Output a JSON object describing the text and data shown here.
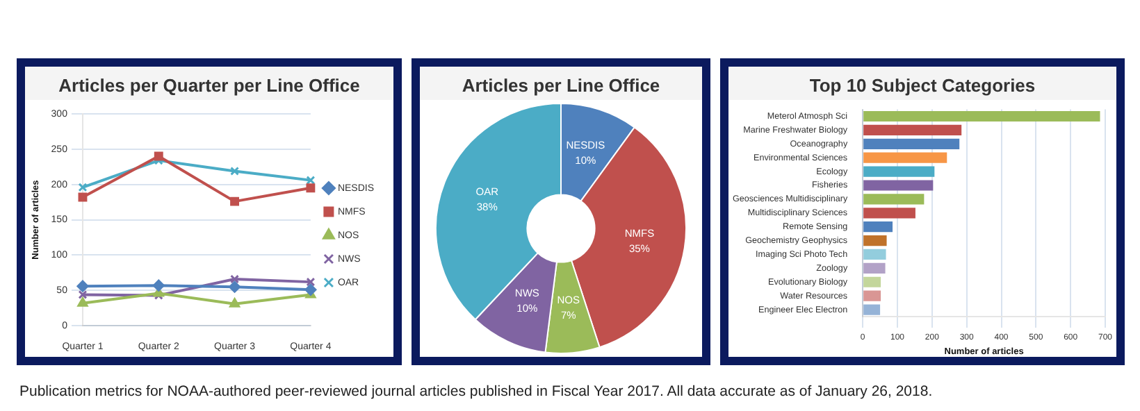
{
  "chart_data": [
    {
      "type": "line",
      "title": "Articles per Quarter per Line Office",
      "ylabel": "Number of articles",
      "categories": [
        "Quarter 1",
        "Quarter 2",
        "Quarter 3",
        "Quarter 4"
      ],
      "series": [
        {
          "name": "NESDIS",
          "color": "#4f81bd",
          "marker": "diamond",
          "values": [
            56,
            57,
            55,
            51
          ]
        },
        {
          "name": "NMFS",
          "color": "#c0504d",
          "marker": "square",
          "values": [
            182,
            240,
            176,
            195
          ]
        },
        {
          "name": "NOS",
          "color": "#9bbb59",
          "marker": "triangle",
          "values": [
            32,
            46,
            31,
            44
          ]
        },
        {
          "name": "NWS",
          "color": "#8064a2",
          "marker": "cross",
          "values": [
            44,
            43,
            66,
            62
          ]
        },
        {
          "name": "OAR",
          "color": "#4bacc6",
          "marker": "cross",
          "values": [
            196,
            234,
            219,
            206
          ]
        }
      ],
      "ylim": [
        0,
        300
      ],
      "yticks": [
        0,
        50,
        100,
        150,
        200,
        250,
        300
      ],
      "grid": "y",
      "legend": "right",
      "annotations": [
        "Publication metrics for NOAA-authored peer-reviewed journal articles published in Fiscal Year 2017. All data accurate as of January 26, 2018."
      ]
    },
    {
      "type": "donut",
      "title": "Articles per Line Office",
      "categories": [
        "NESDIS",
        "NMFS",
        "NOS",
        "NWS",
        "OAR"
      ],
      "values": [
        10,
        35,
        7,
        10,
        38
      ],
      "value_labels": [
        "10%",
        "35%",
        "7%",
        "10%",
        "38%"
      ],
      "colors": [
        "#4f81bd",
        "#c0504d",
        "#9bbb59",
        "#8064a2",
        "#4bacc6"
      ]
    },
    {
      "type": "bar",
      "orientation": "horizontal",
      "title": "Top 10 Subject Categories",
      "xlabel": "Number of articles",
      "categories": [
        "Meterol Atmosph Sci",
        "Marine Freshwater Biology",
        "Oceanography",
        "Environmental Sciences",
        "Ecology",
        "Fisheries",
        "Geosciences Multidisciplinary",
        "Multidisciplinary Sciences",
        "Remote Sensing",
        "Geochemistry Geophysics",
        "Imaging Sci Photo Tech",
        "Zoology",
        "Evolutionary Biology",
        "Water Resources",
        "Engineer Elec Electron"
      ],
      "values": [
        685,
        285,
        279,
        243,
        207,
        203,
        177,
        152,
        86,
        69,
        67,
        65,
        52,
        52,
        50
      ],
      "colors": [
        "#9bbb59",
        "#c0504d",
        "#4f81bd",
        "#f79646",
        "#4bacc6",
        "#8064a2",
        "#9bbb59",
        "#c0504d",
        "#4f81bd",
        "#c0722a",
        "#93cddd",
        "#b2a2c7",
        "#c3d69b",
        "#d99694",
        "#95b3d7"
      ],
      "xlim": [
        0,
        700
      ],
      "xticks": [
        0,
        100,
        200,
        300,
        400,
        500,
        600,
        700
      ],
      "grid": "x"
    }
  ]
}
